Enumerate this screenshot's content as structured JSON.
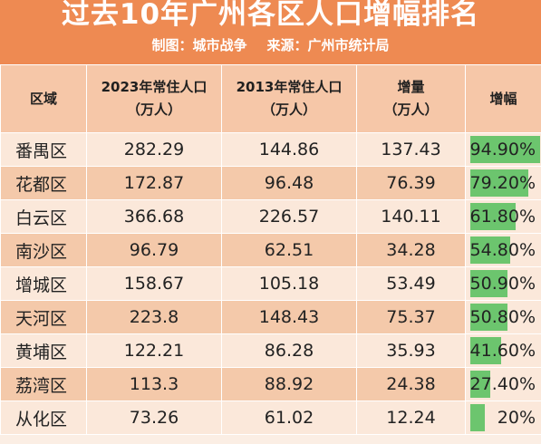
{
  "header": {
    "title": "过去10年广州各区人口增幅排名",
    "credit": "制图：城市战争",
    "source": "来源：广州市统计局"
  },
  "table": {
    "columns": [
      {
        "line1": "区域",
        "line2": ""
      },
      {
        "line1": "2023年常住人口",
        "line2": "（万人）"
      },
      {
        "line1": "2013年常住人口",
        "line2": "（万人）"
      },
      {
        "line1": "增量",
        "line2": "（万人）"
      },
      {
        "line1": "增幅",
        "line2": ""
      }
    ],
    "rows": [
      {
        "district": "番禺区",
        "pop2023": "282.29",
        "pop2013": "144.86",
        "increase": "137.43",
        "growth": "94.90%",
        "growth_value": 94.9
      },
      {
        "district": "花都区",
        "pop2023": "172.87",
        "pop2013": "96.48",
        "increase": "76.39",
        "growth": "79.20%",
        "growth_value": 79.2
      },
      {
        "district": "白云区",
        "pop2023": "366.68",
        "pop2013": "226.57",
        "increase": "140.11",
        "growth": "61.80%",
        "growth_value": 61.8
      },
      {
        "district": "南沙区",
        "pop2023": "96.79",
        "pop2013": "62.51",
        "increase": "34.28",
        "growth": "54.80%",
        "growth_value": 54.8
      },
      {
        "district": "增城区",
        "pop2023": "158.67",
        "pop2013": "105.18",
        "increase": "53.49",
        "growth": "50.90%",
        "growth_value": 50.9
      },
      {
        "district": "天河区",
        "pop2023": "223.8",
        "pop2013": "148.43",
        "increase": "75.37",
        "growth": "50.80%",
        "growth_value": 50.8
      },
      {
        "district": "黄埔区",
        "pop2023": "122.21",
        "pop2013": "86.28",
        "increase": "35.93",
        "growth": "41.60%",
        "growth_value": 41.6
      },
      {
        "district": "荔湾区",
        "pop2023": "113.3",
        "pop2013": "88.92",
        "increase": "24.38",
        "growth": "27.40%",
        "growth_value": 27.4
      },
      {
        "district": "从化区",
        "pop2023": "73.26",
        "pop2013": "61.02",
        "increase": "12.24",
        "growth": "20%",
        "growth_value": 20
      }
    ]
  },
  "colors": {
    "header_bg": "#ee8a52",
    "bar": "#6cc56e",
    "row_light": "#fbe8da",
    "row_dark": "#f4c9aa"
  }
}
